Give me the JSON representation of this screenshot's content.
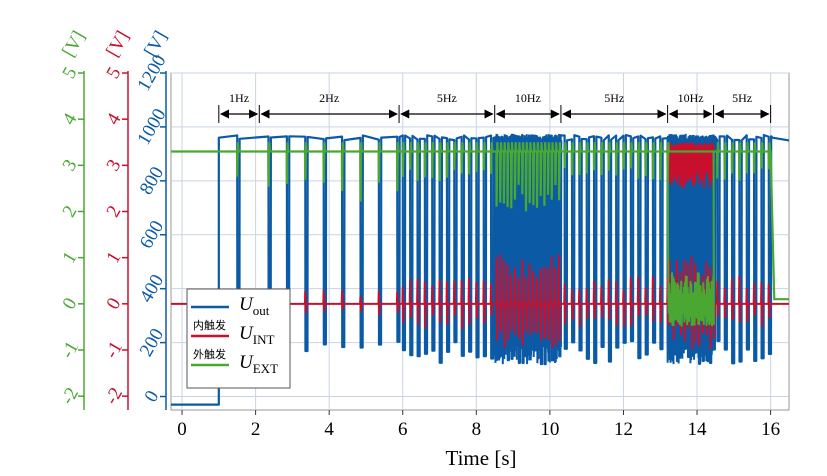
{
  "chart_data": {
    "type": "line",
    "xlabel": "Time [s]",
    "xlim": [
      -0.3,
      16.5
    ],
    "x_ticks": [
      "0",
      "2",
      "4",
      "6",
      "8",
      "10",
      "12",
      "14",
      "16"
    ],
    "axes": [
      {
        "name": "Uout",
        "unit": "[V]",
        "color": "#0b5aa6",
        "ylim": [
          -50,
          1200
        ],
        "ticks": [
          "0",
          "200",
          "400",
          "600",
          "800",
          "1000",
          "1200"
        ]
      },
      {
        "name": "UINT",
        "unit": "[V]",
        "color": "#c8102e",
        "ylim": [
          -2.3,
          5
        ],
        "ticks": [
          "-2",
          "-1",
          "0",
          "1",
          "2",
          "3",
          "4",
          "5"
        ]
      },
      {
        "name": "UEXT",
        "unit": "[V]",
        "color": "#4aa832",
        "ylim": [
          -2.3,
          5
        ],
        "ticks": [
          "-2",
          "-1",
          "0",
          "1",
          "2",
          "3",
          "4",
          "5"
        ]
      }
    ],
    "segments": [
      {
        "label": "1Hz",
        "start": 1.0,
        "end": 2.1,
        "freq": 1
      },
      {
        "label": "2Hz",
        "start": 2.1,
        "end": 5.9,
        "freq": 2
      },
      {
        "label": "5Hz",
        "start": 5.9,
        "end": 8.5,
        "freq": 5
      },
      {
        "label": "10Hz",
        "start": 8.5,
        "end": 10.3,
        "freq": 10
      },
      {
        "label": "5Hz",
        "start": 10.3,
        "end": 13.2,
        "freq": 5
      },
      {
        "label": "10Hz",
        "start": 13.2,
        "end": 14.45,
        "freq": 10
      },
      {
        "label": "5Hz",
        "start": 14.45,
        "end": 16.0,
        "freq": 5
      }
    ],
    "series": [
      {
        "name": "Uout",
        "color": "#0b5aa6",
        "base_level": -30,
        "high_level": 960,
        "low_level": 120
      },
      {
        "name": "UINT",
        "color": "#c8102e",
        "base_level": 0,
        "high_level": 3.3
      },
      {
        "name": "UEXT",
        "color": "#4aa832",
        "base_level": 3.3,
        "low_level": 0.1
      }
    ],
    "legend": {
      "position": "lower-left",
      "entries": [
        {
          "prefix": "",
          "symbol": "U",
          "sub": "out",
          "color": "#0b5aa6"
        },
        {
          "prefix": "内触发",
          "symbol": "U",
          "sub": "INT",
          "color": "#c8102e"
        },
        {
          "prefix": "外触发",
          "symbol": "U",
          "sub": "EXT",
          "color": "#4aa832"
        }
      ]
    },
    "grid": true
  }
}
